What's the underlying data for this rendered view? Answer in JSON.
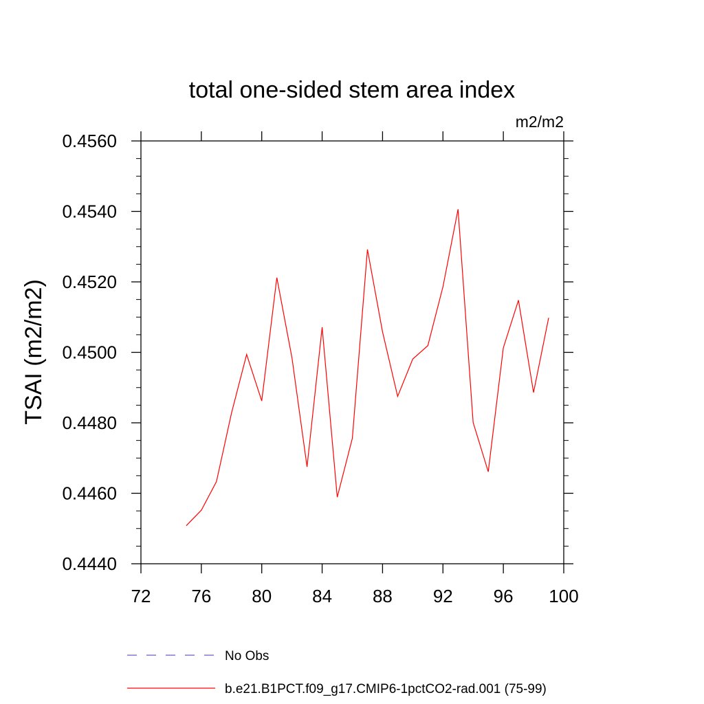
{
  "chart_data": {
    "type": "line",
    "title": "total one-sided stem area index",
    "units": "m2/m2",
    "ylabel": "TSAI  (m2/m2)",
    "xlabel": "",
    "xlim": [
      72,
      100
    ],
    "ylim": [
      0.444,
      0.456
    ],
    "x_ticks": [
      "72",
      "76",
      "80",
      "84",
      "88",
      "92",
      "96",
      "100"
    ],
    "y_ticks": [
      "0.4440",
      "0.4460",
      "0.4480",
      "0.4500",
      "0.4520",
      "0.4540",
      "0.4560"
    ],
    "grid": false,
    "legend_position": "bottom",
    "series": [
      {
        "name": "No Obs",
        "color": "#6a5acd",
        "dash": "dashed",
        "x": [],
        "values": []
      },
      {
        "name": "b.e21.B1PCT.f09_g17.CMIP6-1pctCO2-rad.001 (75-99)",
        "color": "#ff0000",
        "dash": "solid",
        "x": [
          75,
          76,
          77,
          78,
          79,
          80,
          81,
          82,
          83,
          84,
          85,
          86,
          87,
          88,
          89,
          90,
          91,
          92,
          93,
          94,
          95,
          96,
          97,
          98,
          99
        ],
        "values": [
          0.44508,
          0.44552,
          0.44633,
          0.44828,
          0.44994,
          0.44862,
          0.45212,
          0.44985,
          0.44675,
          0.45071,
          0.44589,
          0.44756,
          0.45292,
          0.45058,
          0.44875,
          0.44981,
          0.45019,
          0.45186,
          0.45406,
          0.44801,
          0.44661,
          0.45013,
          0.45148,
          0.44886,
          0.45098
        ]
      }
    ]
  }
}
